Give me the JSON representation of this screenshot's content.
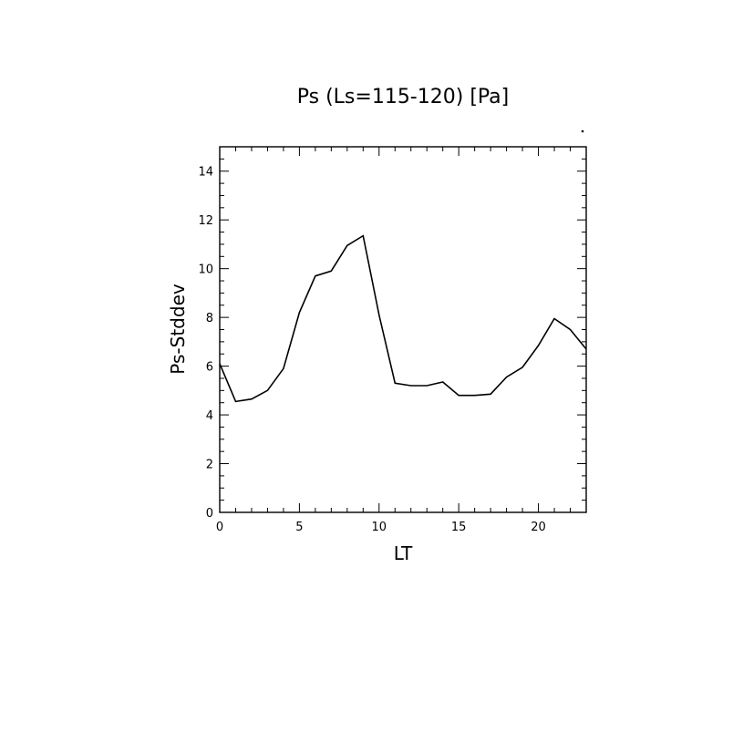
{
  "chart_data": {
    "type": "line",
    "title": "Ps (Ls=115-120) [Pa]",
    "xlabel": "LT",
    "ylabel": "Ps-Stddev",
    "xlim": [
      0,
      23
    ],
    "ylim": [
      0,
      15
    ],
    "xticks": [
      0,
      5,
      10,
      15,
      20
    ],
    "yticks": [
      0,
      2,
      4,
      6,
      8,
      10,
      12,
      14
    ],
    "xtick_labels": [
      "0",
      "5",
      "10",
      "15",
      "20"
    ],
    "ytick_labels": [
      "0",
      "2",
      "4",
      "6",
      "8",
      "10",
      "12",
      "14"
    ],
    "grid": false,
    "series": [
      {
        "x": [
          0,
          1,
          2,
          3,
          4,
          5,
          6,
          7,
          8,
          9,
          10,
          11,
          12,
          13,
          14,
          15,
          16,
          17,
          18,
          19,
          20,
          21,
          22,
          23
        ],
        "values": [
          6.1,
          4.55,
          4.65,
          5.0,
          5.9,
          8.2,
          9.7,
          9.9,
          10.95,
          11.35,
          8.1,
          5.3,
          5.2,
          5.2,
          5.35,
          4.8,
          4.8,
          4.85,
          5.55,
          5.95,
          6.85,
          7.95,
          7.5,
          6.7
        ]
      }
    ],
    "line_color": "#000000"
  }
}
